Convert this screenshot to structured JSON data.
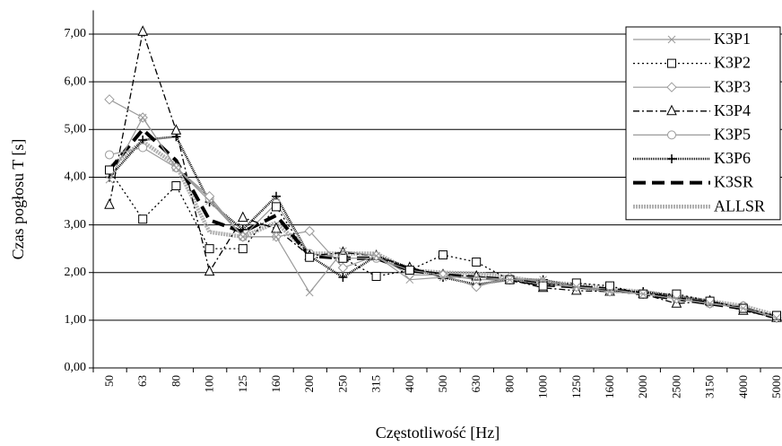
{
  "chart_data": {
    "type": "line",
    "x_label": "Częstotliwość [Hz]",
    "y_label": "Czas pogłosu T [s]",
    "categories": [
      "50",
      "63",
      "80",
      "100",
      "125",
      "160",
      "200",
      "250",
      "315",
      "400",
      "500",
      "630",
      "800",
      "1000",
      "1250",
      "1600",
      "2000",
      "2500",
      "3150",
      "4000",
      "5000"
    ],
    "ylim": [
      0,
      7.5
    ],
    "yticks": [
      {
        "value": 0,
        "label": "0,00"
      },
      {
        "value": 1,
        "label": "1,00"
      },
      {
        "value": 2,
        "label": "2,00"
      },
      {
        "value": 3,
        "label": "3,00"
      },
      {
        "value": 4,
        "label": "4,00"
      },
      {
        "value": 5,
        "label": "5,00"
      },
      {
        "value": 6,
        "label": "6,00"
      },
      {
        "value": 7,
        "label": "7,00"
      }
    ],
    "grid": true,
    "legend": "upper right",
    "series": [
      {
        "name": "K3P1",
        "color": "#9a9a9a",
        "values": [
          3.95,
          5.25,
          4.2,
          3.5,
          2.75,
          2.75,
          1.58,
          2.45,
          2.35,
          1.85,
          1.9,
          1.9,
          1.85,
          1.85,
          1.7,
          1.6,
          1.55,
          1.45,
          1.35,
          1.25,
          1.05
        ]
      },
      {
        "name": "K3P2",
        "color": "#000000",
        "values": [
          4.15,
          3.12,
          3.82,
          2.5,
          2.5,
          3.38,
          2.32,
          2.3,
          1.92,
          2.05,
          2.37,
          2.22,
          1.85,
          1.72,
          1.78,
          1.72,
          1.55,
          1.55,
          1.4,
          1.25,
          1.1
        ]
      },
      {
        "name": "K3P3",
        "color": "#9a9a9a",
        "values": [
          5.63,
          5.25,
          4.2,
          3.6,
          2.75,
          2.75,
          2.87,
          2.1,
          2.35,
          1.95,
          1.95,
          1.7,
          1.9,
          1.8,
          1.7,
          1.6,
          1.55,
          1.45,
          1.35,
          1.3,
          1.05
        ]
      },
      {
        "name": "K3P4",
        "color": "#000000",
        "values": [
          3.42,
          7.05,
          4.98,
          2.02,
          3.15,
          2.92,
          2.35,
          2.42,
          2.35,
          2.1,
          1.95,
          1.92,
          1.85,
          1.68,
          1.62,
          1.6,
          1.55,
          1.35,
          1.4,
          1.2,
          1.05
        ]
      },
      {
        "name": "K3P5",
        "color": "#9a9a9a",
        "values": [
          4.47,
          4.62,
          4.2,
          3.55,
          2.75,
          3.45,
          2.4,
          2.3,
          2.3,
          2.05,
          1.95,
          1.85,
          1.85,
          1.75,
          1.7,
          1.65,
          1.55,
          1.45,
          1.35,
          1.3,
          1.05
        ]
      },
      {
        "name": "K3P6",
        "color": "#000000",
        "values": [
          4.0,
          4.78,
          4.85,
          3.48,
          2.9,
          3.6,
          2.35,
          1.9,
          2.35,
          2.1,
          1.9,
          1.75,
          1.85,
          1.85,
          1.7,
          1.6,
          1.6,
          1.5,
          1.4,
          1.25,
          1.05
        ]
      },
      {
        "name": "K3SR",
        "color": "#000000",
        "values": [
          4.15,
          5.0,
          4.35,
          3.1,
          2.85,
          3.2,
          2.35,
          2.3,
          2.3,
          2.05,
          1.95,
          1.9,
          1.85,
          1.75,
          1.7,
          1.65,
          1.55,
          1.45,
          1.35,
          1.25,
          1.05
        ]
      },
      {
        "name": "ALLSR",
        "color": "#b0b0b0",
        "values": [
          4.2,
          4.75,
          4.25,
          2.85,
          2.75,
          3.05,
          2.4,
          2.4,
          2.4,
          2.05,
          2.0,
          1.98,
          1.9,
          1.8,
          1.75,
          1.65,
          1.6,
          1.5,
          1.4,
          1.3,
          1.1
        ]
      }
    ]
  }
}
